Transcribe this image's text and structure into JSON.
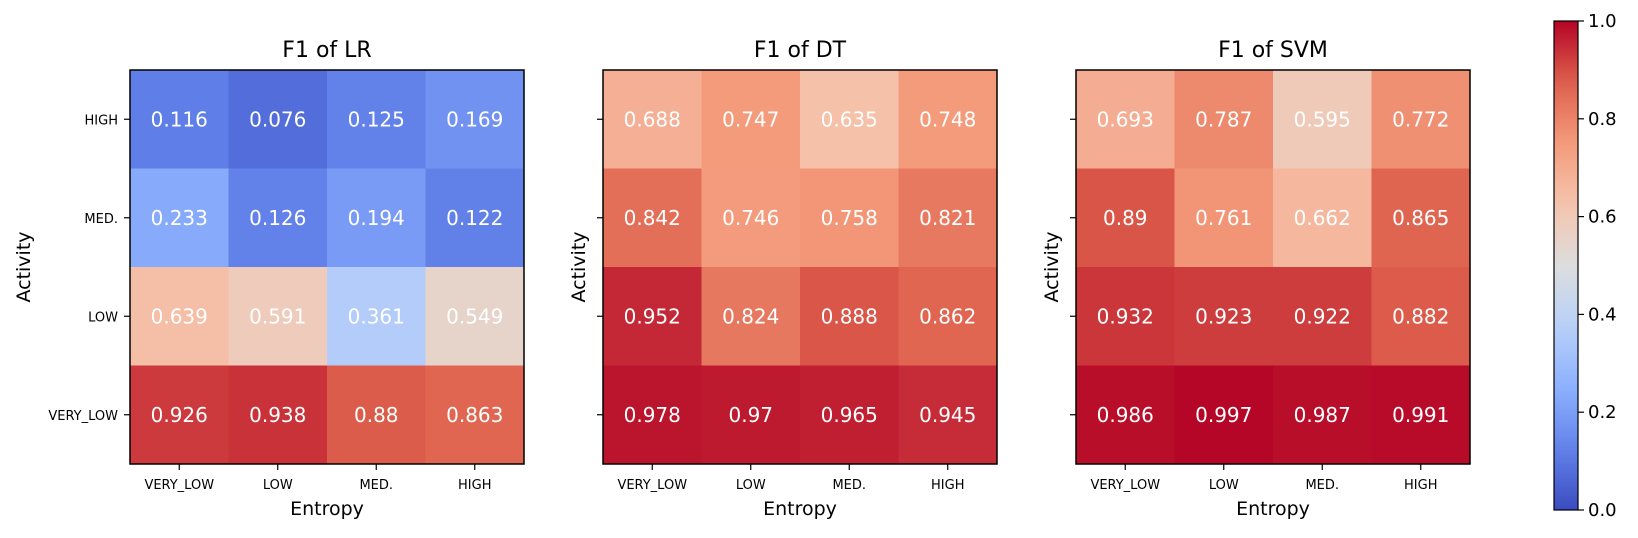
{
  "chart_data": [
    {
      "type": "heatmap",
      "title": "F1 of LR",
      "xlabel": "Entropy",
      "ylabel": "Activity",
      "x_categories": [
        "VERY_LOW",
        "LOW",
        "MED.",
        "HIGH"
      ],
      "y_categories": [
        "HIGH",
        "MED.",
        "LOW",
        "VERY_LOW"
      ],
      "values": [
        [
          0.116,
          0.076,
          0.125,
          0.169
        ],
        [
          0.233,
          0.126,
          0.194,
          0.122
        ],
        [
          0.639,
          0.591,
          0.361,
          0.549
        ],
        [
          0.926,
          0.938,
          0.88,
          0.863
        ]
      ],
      "value_labels": [
        [
          "0.116",
          "0.076",
          "0.125",
          "0.169"
        ],
        [
          "0.233",
          "0.126",
          "0.194",
          "0.122"
        ],
        [
          "0.639",
          "0.591",
          "0.361",
          "0.549"
        ],
        [
          "0.926",
          "0.938",
          "0.88",
          "0.863"
        ]
      ],
      "show_y_tick_labels": true
    },
    {
      "type": "heatmap",
      "title": "F1 of DT",
      "xlabel": "Entropy",
      "ylabel": "Activity",
      "x_categories": [
        "VERY_LOW",
        "LOW",
        "MED.",
        "HIGH"
      ],
      "y_categories": [
        "HIGH",
        "MED.",
        "LOW",
        "VERY_LOW"
      ],
      "values": [
        [
          0.688,
          0.747,
          0.635,
          0.748
        ],
        [
          0.842,
          0.746,
          0.758,
          0.821
        ],
        [
          0.952,
          0.824,
          0.888,
          0.862
        ],
        [
          0.978,
          0.97,
          0.965,
          0.945
        ]
      ],
      "value_labels": [
        [
          "0.688",
          "0.747",
          "0.635",
          "0.748"
        ],
        [
          "0.842",
          "0.746",
          "0.758",
          "0.821"
        ],
        [
          "0.952",
          "0.824",
          "0.888",
          "0.862"
        ],
        [
          "0.978",
          "0.97",
          "0.965",
          "0.945"
        ]
      ],
      "show_y_tick_labels": false
    },
    {
      "type": "heatmap",
      "title": "F1 of SVM",
      "xlabel": "Entropy",
      "ylabel": "Activity",
      "x_categories": [
        "VERY_LOW",
        "LOW",
        "MED.",
        "HIGH"
      ],
      "y_categories": [
        "HIGH",
        "MED.",
        "LOW",
        "VERY_LOW"
      ],
      "values": [
        [
          0.693,
          0.787,
          0.595,
          0.772
        ],
        [
          0.89,
          0.761,
          0.662,
          0.865
        ],
        [
          0.932,
          0.923,
          0.922,
          0.882
        ],
        [
          0.986,
          0.997,
          0.987,
          0.991
        ]
      ],
      "value_labels": [
        [
          "0.693",
          "0.787",
          "0.595",
          "0.772"
        ],
        [
          "0.89",
          "0.761",
          "0.662",
          "0.865"
        ],
        [
          "0.932",
          "0.923",
          "0.922",
          "0.882"
        ],
        [
          "0.986",
          "0.997",
          "0.987",
          "0.991"
        ]
      ],
      "show_y_tick_labels": false
    }
  ],
  "colorbar": {
    "colormap": "coolwarm",
    "range": [
      0.0,
      1.0
    ],
    "ticks": [
      0.0,
      0.2,
      0.4,
      0.6,
      0.8,
      1.0
    ],
    "tick_labels": [
      "0.0",
      "0.2",
      "0.4",
      "0.6",
      "0.8",
      "1.0"
    ],
    "low_color": "#3b4cc0",
    "mid_color": "#dddddd",
    "high_color": "#b40426"
  }
}
